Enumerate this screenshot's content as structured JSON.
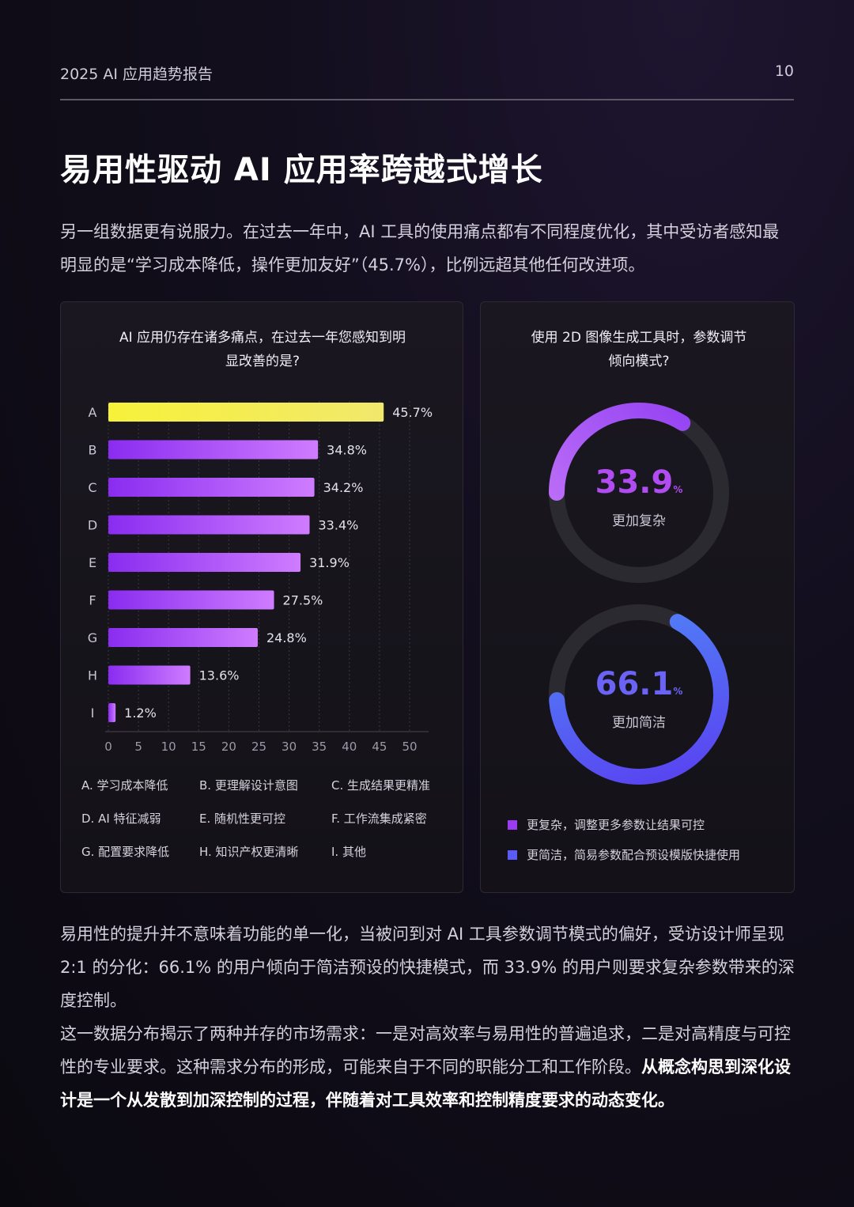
{
  "header": {
    "report_title": "2025 AI 应用趋势报告",
    "page_number": "10"
  },
  "title": "易用性驱动 AI 应用率跨越式增长",
  "intro": "另一组数据更有说服力。在过去一年中，AI 工具的使用痛点都有不同程度优化，其中受访者感知最明显的是“学习成本降低，操作更加友好”（45.7%），比例远超其他任何改进项。",
  "chart_data": [
    {
      "type": "bar",
      "orientation": "horizontal",
      "title": "AI 应用仍存在诸多痛点，在过去一年您感知到明显改善的是?",
      "categories": [
        "A",
        "B",
        "C",
        "D",
        "E",
        "F",
        "G",
        "H",
        "I"
      ],
      "values": [
        45.7,
        34.8,
        34.2,
        33.4,
        31.9,
        27.5,
        24.8,
        13.6,
        1.2
      ],
      "value_labels": [
        "45.7%",
        "34.8%",
        "34.2%",
        "33.4%",
        "31.9%",
        "27.5%",
        "24.8%",
        "13.6%",
        "1.2%"
      ],
      "xlim": [
        0,
        50
      ],
      "x_ticks": [
        "0",
        "5",
        "10",
        "15",
        "20",
        "25",
        "30",
        "35",
        "40",
        "45",
        "50"
      ],
      "grid": "vertical dotted",
      "highlight_color": "#f5ee3a",
      "bar_color_start": "#8a2cf0",
      "bar_color_end": "#cf7cff",
      "category_legend": [
        "A. 学习成本降低",
        "B. 更理解设计意图",
        "C. 生成结果更精准",
        "D. AI 特征减弱",
        "E. 随机性更可控",
        "F. 工作流集成紧密",
        "G. 配置要求降低",
        "H. 知识产权更清晰",
        "I. 其他"
      ]
    },
    {
      "type": "pie",
      "style": "donut",
      "title": "使用 2D 图像生成工具时，参数调节倾向模式?",
      "slices": [
        {
          "label": "更加复杂",
          "value": 33.9,
          "display": "33.9",
          "color": "#a445f0"
        },
        {
          "label": "更加简洁",
          "value": 66.1,
          "display": "66.1",
          "color": "#5b5cf5"
        }
      ],
      "pct_symbol": "%",
      "track_color": "#2b2a30",
      "legend": [
        {
          "label": "更复杂，调整更多参数让结果可控",
          "color": "#9b3cf0"
        },
        {
          "label": "更简洁，简易参数配合预设模版快捷使用",
          "color": "#5b5cf5"
        }
      ]
    }
  ],
  "body": {
    "p1": "易用性的提升并不意味着功能的单一化，当被问到对 AI 工具参数调节模式的偏好，受访设计师呈现 2:1 的分化：66.1% 的用户倾向于简洁预设的快捷模式，而 33.9% 的用户则要求复杂参数带来的深度控制。",
    "p2": "这一数据分布揭示了两种并存的市场需求：一是对高效率与易用性的普遍追求，二是对高精度与可控性的专业要求。这种需求分布的形成，可能来自于不同的职能分工和工作阶段。",
    "p2_bold": "从概念构思到深化设计是一个从发散到加深控制的过程，伴随着对工具效率和控制精度要求的动态变化。"
  }
}
